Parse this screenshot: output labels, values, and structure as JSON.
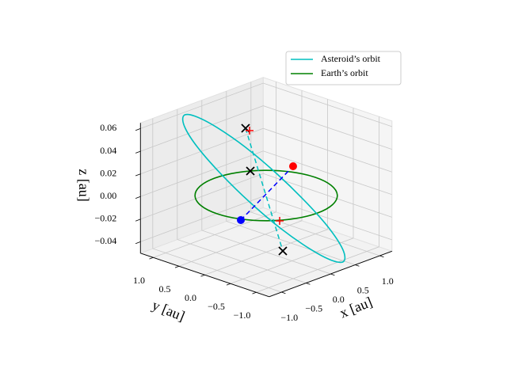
{
  "chart_data": {
    "type": "line3d",
    "x_label": "x [au]",
    "y_label": "y [au]",
    "z_label": "z [au]",
    "xlim": [
      -1.25,
      1.25
    ],
    "ylim": [
      -1.25,
      1.25
    ],
    "zlim": [
      -0.05,
      0.065
    ],
    "xticks": [
      {
        "value": -1.0,
        "label": "−1.0"
      },
      {
        "value": -0.5,
        "label": "−0.5"
      },
      {
        "value": 0.0,
        "label": "0.0"
      },
      {
        "value": 0.5,
        "label": "0.5"
      },
      {
        "value": 1.0,
        "label": "1.0"
      }
    ],
    "yticks": [
      {
        "value": -1.0,
        "label": "−1.0"
      },
      {
        "value": -0.5,
        "label": "−0.5"
      },
      {
        "value": 0.0,
        "label": "0.0"
      },
      {
        "value": 0.5,
        "label": "0.5"
      },
      {
        "value": 1.0,
        "label": "1.0"
      }
    ],
    "zticks": [
      {
        "value": -0.04,
        "label": "−0.04"
      },
      {
        "value": -0.02,
        "label": "−0.02"
      },
      {
        "value": 0.0,
        "label": "0.00"
      },
      {
        "value": 0.02,
        "label": "0.02"
      },
      {
        "value": 0.04,
        "label": "0.04"
      },
      {
        "value": 0.06,
        "label": "0.06"
      }
    ],
    "grid": true,
    "legend": "upper right",
    "series": [
      {
        "name": "Asteroid’s orbit",
        "color": "#00bfbf",
        "x": [
          0.655,
          0.4,
          0.087,
          -0.236,
          -0.521,
          -0.724,
          -0.813,
          -0.776,
          -0.617,
          -0.362,
          -0.049,
          0.274,
          0.559,
          0.762,
          0.851,
          0.814
        ],
        "y": [
          -0.883,
          -0.908,
          -0.786,
          -0.534,
          -0.19,
          0.192,
          0.554,
          0.842,
          1.011,
          1.036,
          0.914,
          0.662,
          0.318,
          -0.064,
          -0.426,
          -0.714
        ],
        "z": [
          -0.055,
          -0.05,
          -0.037,
          -0.018,
          0.005,
          0.028,
          0.047,
          0.06,
          0.065,
          0.06,
          0.047,
          0.028,
          0.005,
          -0.018,
          -0.037,
          -0.05
        ]
      },
      {
        "name": "Earth’s orbit",
        "color": "#008000",
        "x": [
          1,
          0.924,
          0.707,
          0.383,
          0,
          -0.383,
          -0.707,
          -0.924,
          -1,
          -0.924,
          -0.707,
          -0.383,
          0,
          0.383,
          0.707,
          0.924
        ],
        "y": [
          0,
          0.383,
          0.707,
          0.924,
          1,
          0.924,
          0.707,
          0.383,
          0,
          -0.383,
          -0.707,
          -0.924,
          -1,
          -0.924,
          -0.707,
          -0.383
        ],
        "z": [
          0,
          0,
          0,
          0,
          0,
          0,
          0,
          0,
          0,
          0,
          0,
          0,
          0,
          0,
          0,
          0
        ]
      }
    ],
    "points": {
      "x": [
        -0.951,
        1.005,
        -0.056,
        -0.099,
        0.196,
        -0.085,
        -0.434
      ],
      "y": [
        -0.415,
        0.436,
        0.347,
        0.213,
        -0.136,
        0.242,
        -0.676
      ],
      "z": [
        0,
        0.003,
        0.055,
        0.02,
        -0.05,
        0.055,
        -0.005
      ],
      "colors": [
        "#0000ff",
        "#ff0000",
        "#000000",
        "#000000",
        "#000000",
        "#ff0000",
        "#ff0000"
      ],
      "markers": [
        "o",
        "o",
        "x",
        "x",
        "x",
        "+",
        "+"
      ]
    }
  }
}
